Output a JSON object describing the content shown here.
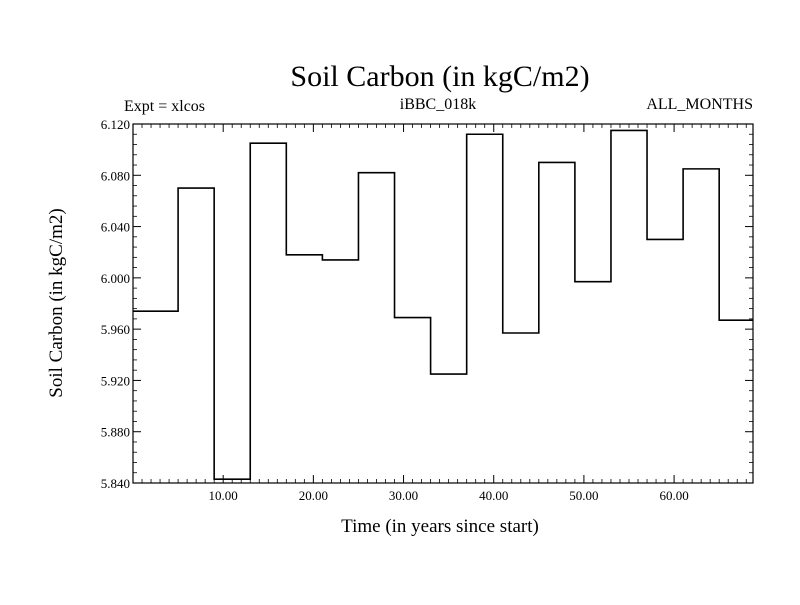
{
  "chart_data": {
    "type": "line",
    "style": "step",
    "title": "Soil Carbon (in kgC/m2)",
    "subtitle_left": "Expt = xlcos",
    "subtitle_center": "iBBC_018k",
    "subtitle_right": "ALL_MONTHS",
    "xlabel": "Time (in years since start)",
    "ylabel": "Soil Carbon (in kgC/m2)",
    "xlim": [
      0,
      68.75
    ],
    "ylim": [
      5.84,
      6.12
    ],
    "xticks": [
      10,
      20,
      30,
      40,
      50,
      60
    ],
    "xtick_labels": [
      "10.00",
      "20.00",
      "30.00",
      "40.00",
      "50.00",
      "60.00"
    ],
    "yticks": [
      5.84,
      5.88,
      5.92,
      5.96,
      6.0,
      6.04,
      6.08,
      6.12
    ],
    "ytick_labels": [
      "5.840",
      "5.880",
      "5.920",
      "5.960",
      "6.000",
      "6.040",
      "6.080",
      "6.120"
    ],
    "grid": false,
    "series": [
      {
        "steps": [
          {
            "x0": 0,
            "x1": 5,
            "y": 5.974
          },
          {
            "x0": 5,
            "x1": 9,
            "y": 6.07
          },
          {
            "x0": 9,
            "x1": 13,
            "y": 5.843
          },
          {
            "x0": 13,
            "x1": 17,
            "y": 6.105
          },
          {
            "x0": 17,
            "x1": 21,
            "y": 6.018
          },
          {
            "x0": 21,
            "x1": 25,
            "y": 6.014
          },
          {
            "x0": 25,
            "x1": 29,
            "y": 6.082
          },
          {
            "x0": 29,
            "x1": 33,
            "y": 5.969
          },
          {
            "x0": 33,
            "x1": 37,
            "y": 5.925
          },
          {
            "x0": 37,
            "x1": 41,
            "y": 6.112
          },
          {
            "x0": 41,
            "x1": 45,
            "y": 5.957
          },
          {
            "x0": 45,
            "x1": 49,
            "y": 6.09
          },
          {
            "x0": 49,
            "x1": 53,
            "y": 5.997
          },
          {
            "x0": 53,
            "x1": 57,
            "y": 6.115
          },
          {
            "x0": 57,
            "x1": 61,
            "y": 6.03
          },
          {
            "x0": 61,
            "x1": 65,
            "y": 6.085
          },
          {
            "x0": 65,
            "x1": 68.75,
            "y": 5.967
          }
        ]
      }
    ]
  }
}
